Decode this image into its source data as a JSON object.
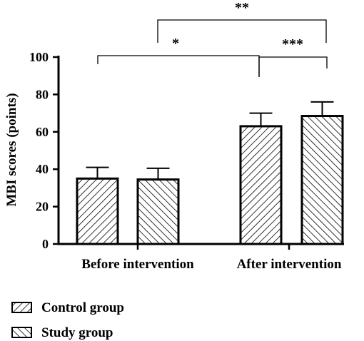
{
  "chart_data": {
    "type": "bar",
    "title": "",
    "xlabel": "",
    "ylabel": "MBI scores (points)",
    "ylim": [
      0,
      100
    ],
    "yticks": [
      "0",
      "20",
      "40",
      "60",
      "80",
      "100"
    ],
    "categories": [
      "Before intervention",
      "After intervention"
    ],
    "series": [
      {
        "name": "Control group",
        "values": [
          35,
          63
        ],
        "errors": [
          6,
          7
        ],
        "pattern": "forward-hatch"
      },
      {
        "name": "Study group",
        "values": [
          34.5,
          68.5
        ],
        "errors": [
          6,
          7.5
        ],
        "pattern": "backward-hatch"
      }
    ],
    "significance": [
      {
        "label": "**",
        "from": "Before intervention",
        "to": "After intervention / Study group"
      },
      {
        "label": "*",
        "from": "Before intervention",
        "to": "After intervention / Control group"
      },
      {
        "label": "***",
        "from": "After intervention / Control group",
        "to": "After intervention / Study group"
      }
    ],
    "legend_position": "bottom-left",
    "grid": false,
    "colors": {
      "bar_fill": "#ffffff",
      "stroke": "#000000"
    }
  }
}
